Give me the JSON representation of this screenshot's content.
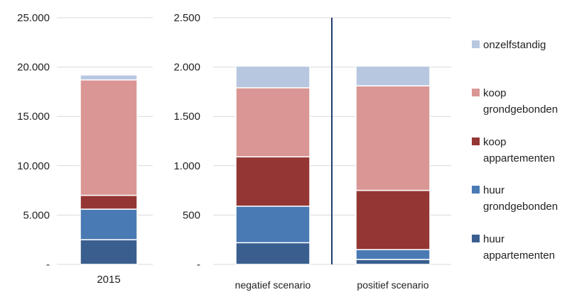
{
  "colors": {
    "onzelfstandig": "#b8c7e0",
    "koop_grondgebonden": "#da9694",
    "koop_appartementen": "#943634",
    "huur_grondgebonden": "#4a7ab4",
    "huur_appartementen": "#3a5f8f",
    "separator": "#1f3a6e"
  },
  "chart_data": [
    {
      "type": "bar",
      "stacked": true,
      "categories": [
        "2015"
      ],
      "ylim": [
        0,
        25000
      ],
      "yticks": [
        0,
        5000,
        10000,
        15000,
        20000,
        25000
      ],
      "ytick_labels": [
        "-",
        "5.000",
        "10.000",
        "15.000",
        "20.000",
        "25.000"
      ],
      "grid": true,
      "series": [
        {
          "name": "huur appartementen",
          "values": [
            2500
          ]
        },
        {
          "name": "huur grondgebonden",
          "values": [
            3100
          ]
        },
        {
          "name": "koop appartementen",
          "values": [
            1400
          ]
        },
        {
          "name": "koop grondgebonden",
          "values": [
            11700
          ]
        },
        {
          "name": "onzelfstandig",
          "values": [
            500
          ]
        }
      ]
    },
    {
      "type": "bar",
      "stacked": true,
      "categories": [
        "negatief scenario",
        "positief scenario"
      ],
      "ylim": [
        0,
        2500
      ],
      "yticks": [
        0,
        500,
        1000,
        1500,
        2000,
        2500
      ],
      "ytick_labels": [
        "-",
        "500",
        "1.000",
        "1.500",
        "2.000",
        "2.500"
      ],
      "grid": true,
      "series": [
        {
          "name": "huur appartementen",
          "values": [
            220,
            50
          ]
        },
        {
          "name": "huur grondgebonden",
          "values": [
            370,
            100
          ]
        },
        {
          "name": "koop appartementen",
          "values": [
            500,
            600
          ]
        },
        {
          "name": "koop grondgebonden",
          "values": [
            700,
            1060
          ]
        },
        {
          "name": "onzelfstandig",
          "values": [
            220,
            200
          ]
        }
      ]
    }
  ],
  "legend": [
    {
      "key": "onzelfstandig",
      "label": "onzelfstandig"
    },
    {
      "key": "koop_grondgebonden",
      "label": "koop grondgebonden"
    },
    {
      "key": "koop_appartementen",
      "label": "koop appartementen"
    },
    {
      "key": "huur_grondgebonden",
      "label": "huur grondgebonden"
    },
    {
      "key": "huur_appartementen",
      "label": "huur appartementen"
    }
  ]
}
